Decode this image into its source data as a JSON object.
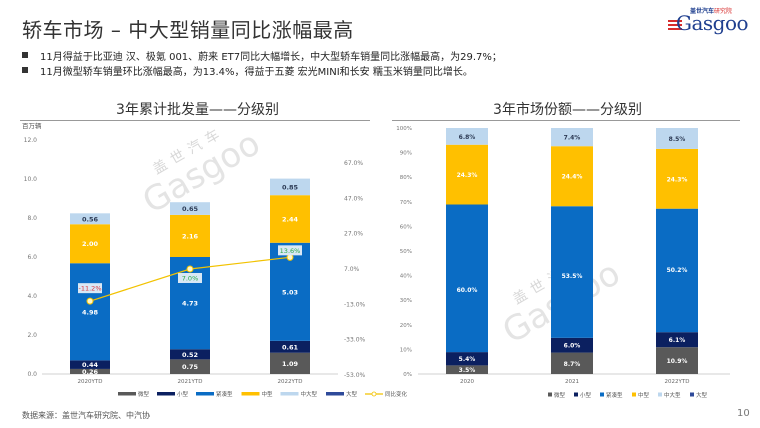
{
  "header": {
    "title": "轿车市场 – 中大型销量同比涨幅最高",
    "logo_cn_prefix": "盖世汽车",
    "logo_cn_suffix": "研究院",
    "logo_en": "Gasgoo"
  },
  "bullets": [
    "11月得益于比亚迪 汉、极氪 001、蔚来 ET7同比大幅增长，中大型轿车销量同比涨幅最高，为29.7%；",
    "11月微型轿车销量环比涨幅最高，为13.4%，得益于五菱 宏光MINI和长安 糯玉米销量同比增长。"
  ],
  "watermark": {
    "cn": "盖世汽车",
    "en": "Gasgoo"
  },
  "colors": {
    "微型": "#595959",
    "小型": "#0b2060",
    "紧凑型": "#0a6cc4",
    "中型": "#ffc000",
    "中大型": "#bdd7ee",
    "大型": "#2e4a9a",
    "同比变化": "#f2c200"
  },
  "chart_data": [
    {
      "type": "bar",
      "stacked": true,
      "title": "3年累计批发量——分级别",
      "ylabel": "百万辆",
      "ylim": [
        0,
        12
      ],
      "yticks": [
        "0.0",
        "2.0",
        "4.0",
        "6.0",
        "8.0",
        "10.0",
        "12.0"
      ],
      "y2lim": [
        -53,
        67
      ],
      "y2ticks": [
        "-53.0%",
        "-33.0%",
        "-13.0%",
        "7.0%",
        "27.0%",
        "47.0%",
        "67.0%"
      ],
      "categories": [
        "2020YTD",
        "2021YTD",
        "2022YTD"
      ],
      "series": [
        {
          "name": "微型",
          "values": [
            0.26,
            0.75,
            1.09
          ],
          "labels": [
            "0.26",
            "0.75",
            "1.09"
          ]
        },
        {
          "name": "小型",
          "values": [
            0.44,
            0.52,
            0.61
          ],
          "labels": [
            "0.44",
            "0.52",
            "0.61"
          ]
        },
        {
          "name": "紧凑型",
          "values": [
            4.98,
            4.73,
            5.03
          ],
          "labels": [
            "4.98",
            "4.73",
            "5.03"
          ]
        },
        {
          "name": "中型",
          "values": [
            2.0,
            2.16,
            2.44
          ],
          "labels": [
            "2.00",
            "2.16",
            "2.44"
          ]
        },
        {
          "name": "中大型",
          "values": [
            0.56,
            0.65,
            0.85
          ],
          "labels": [
            "0.56",
            "0.65",
            "0.85"
          ]
        },
        {
          "name": "大型",
          "values": [
            0,
            0,
            0
          ],
          "labels": [
            "",
            "",
            ""
          ]
        }
      ],
      "line": {
        "name": "同比变化",
        "axis": "secondary",
        "values": [
          -11.2,
          7.0,
          13.6
        ],
        "labels": [
          "-11.2%",
          "7.0%",
          "13.6%"
        ]
      },
      "legend": [
        "微型",
        "小型",
        "紧凑型",
        "中型",
        "中大型",
        "大型",
        "同比变化"
      ],
      "legend_position": "bottom-right"
    },
    {
      "type": "bar",
      "stacked": true,
      "title": "3年市场份额——分级别",
      "ylim": [
        0,
        100
      ],
      "yticks": [
        "0%",
        "10%",
        "20%",
        "30%",
        "40%",
        "50%",
        "60%",
        "70%",
        "80%",
        "90%",
        "100%"
      ],
      "categories": [
        "2020",
        "2021",
        "2022YTD"
      ],
      "series": [
        {
          "name": "微型",
          "values": [
            3.5,
            8.7,
            10.9
          ],
          "labels": [
            "3.5%",
            "8.7%",
            "10.9%"
          ]
        },
        {
          "name": "小型",
          "values": [
            5.4,
            6.0,
            6.1
          ],
          "labels": [
            "5.4%",
            "6.0%",
            "6.1%"
          ]
        },
        {
          "name": "紧凑型",
          "values": [
            60.0,
            53.5,
            50.2
          ],
          "labels": [
            "60.0%",
            "53.5%",
            "50.2%"
          ]
        },
        {
          "name": "中型",
          "values": [
            24.3,
            24.4,
            24.3
          ],
          "labels": [
            "24.3%",
            "24.4%",
            "24.3%"
          ]
        },
        {
          "name": "中大型",
          "values": [
            6.8,
            7.4,
            8.5
          ],
          "labels": [
            "6.8%",
            "7.4%",
            "8.5%"
          ]
        },
        {
          "name": "大型",
          "values": [
            0,
            0,
            0
          ],
          "labels": [
            "",
            "",
            ""
          ]
        }
      ],
      "legend": [
        "微型",
        "小型",
        "紧凑型",
        "中型",
        "中大型",
        "大型"
      ],
      "legend_position": "bottom-right"
    }
  ],
  "footer": {
    "source": "数据来源：盖世汽车研究院、中汽协",
    "page": "10"
  }
}
